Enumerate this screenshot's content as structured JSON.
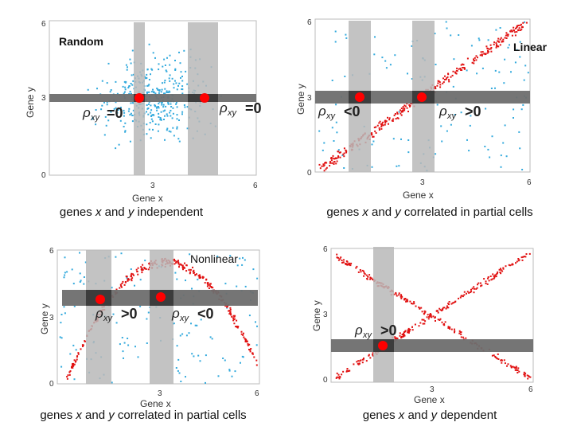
{
  "colors": {
    "blue": "#33aadd",
    "red": "#e11111",
    "band_light": "#b8b8b8",
    "band_dark": "#6e6e6e",
    "overlap": "#3c3c3c",
    "marker": "#ff0000"
  },
  "axes": {
    "xlabel": "Gene x",
    "ylabel": "Gene y"
  },
  "panels": [
    {
      "id": "random",
      "title": "Random",
      "caption": [
        "genes ",
        "x",
        " and ",
        "y",
        " independent"
      ],
      "ticks_x": [
        "3",
        "6"
      ],
      "ticks_y": [
        "0",
        "3",
        "6"
      ],
      "rho": [
        {
          "op": "=",
          "val": "0"
        },
        {
          "op": "=",
          "val": "0"
        }
      ]
    },
    {
      "id": "linear",
      "title": "Linear",
      "caption": [
        "genes ",
        "x",
        " and ",
        "y",
        " correlated in partial cells"
      ],
      "ticks_x": [
        "3",
        "6"
      ],
      "ticks_y": [
        "0",
        "3",
        "6"
      ],
      "rho": [
        {
          "op": "<",
          "val": "0"
        },
        {
          "op": ">",
          "val": "0"
        }
      ]
    },
    {
      "id": "nonlinear",
      "title": "Nonlinear",
      "caption": [
        "genes ",
        "x",
        " and ",
        "y",
        " correlated in partial cells"
      ],
      "ticks_x": [
        "3",
        "6"
      ],
      "ticks_y": [
        "0",
        "3",
        "6"
      ],
      "rho": [
        {
          "op": ">",
          "val": "0"
        },
        {
          "op": "<",
          "val": "0"
        }
      ]
    },
    {
      "id": "dependent",
      "title": "",
      "caption": [
        "genes ",
        "x",
        " and ",
        "y",
        " dependent"
      ],
      "ticks_x": [
        "3",
        "6"
      ],
      "ticks_y": [
        "0",
        "3",
        "6"
      ],
      "rho": [
        {
          "op": ">",
          "val": "0"
        }
      ]
    }
  ]
}
